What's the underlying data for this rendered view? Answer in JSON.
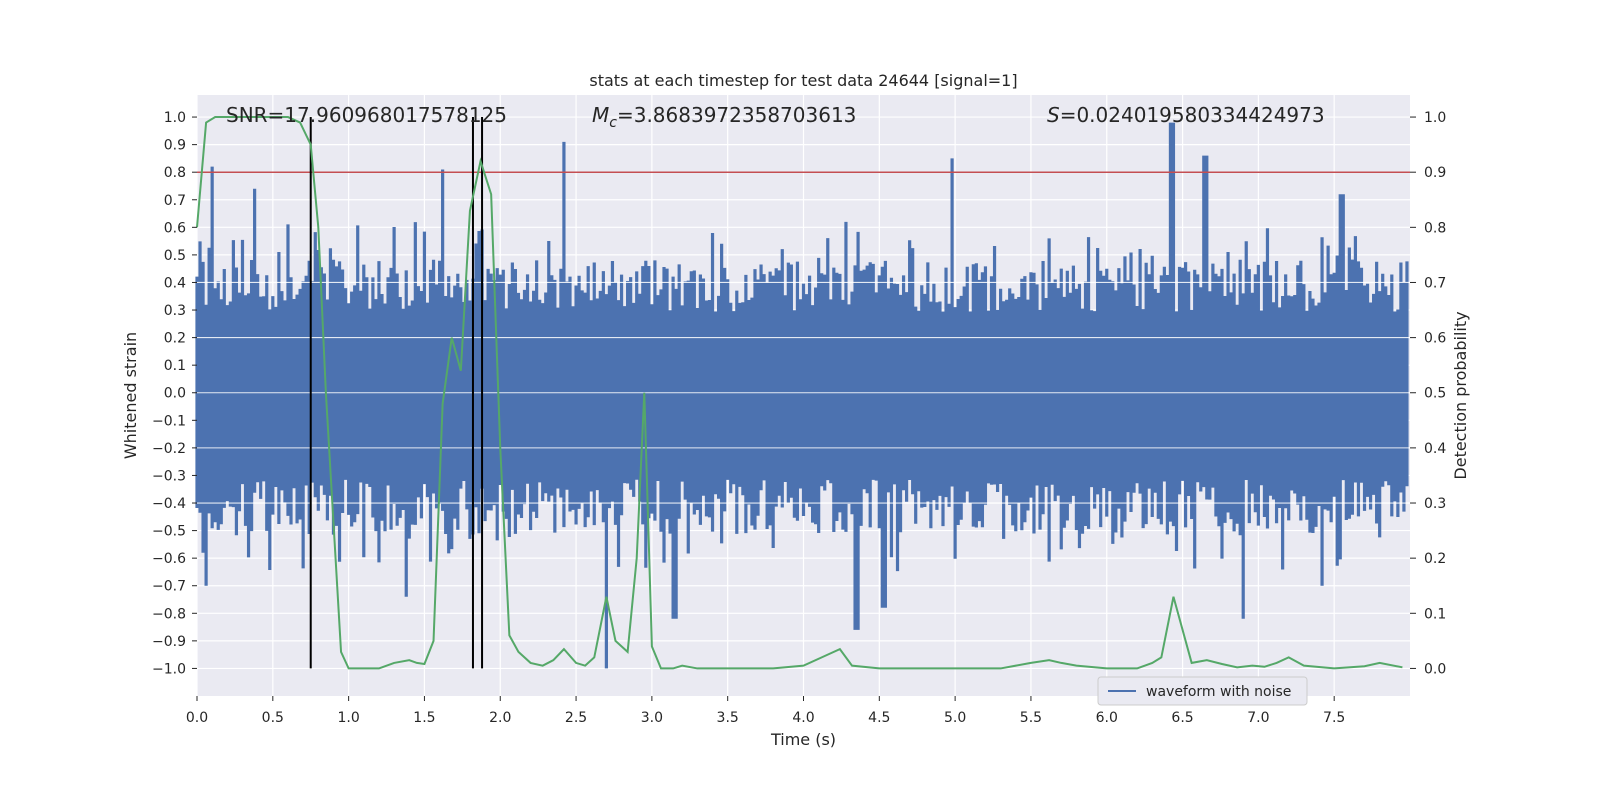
{
  "chart_data": {
    "type": "line",
    "title": "stats at each timestep for test data 24644 [signal=1]",
    "xlabel": "Time (s)",
    "ylabel": "Whitened strain",
    "y2label": "Detection probability",
    "xlim": [
      0.0,
      8.0
    ],
    "ylim": [
      -1.1,
      1.08
    ],
    "y2lim": [
      -0.05,
      1.04
    ],
    "xticks": [
      "0.0",
      "0.5",
      "1.0",
      "1.5",
      "2.0",
      "2.5",
      "3.0",
      "3.5",
      "4.0",
      "4.5",
      "5.0",
      "5.5",
      "6.0",
      "6.5",
      "7.0",
      "7.5"
    ],
    "yticks": [
      "1.0",
      "0.9",
      "0.8",
      "0.7",
      "0.6",
      "0.5",
      "0.4",
      "0.3",
      "0.2",
      "0.1",
      "0.0",
      "−0.1",
      "−0.2",
      "−0.3",
      "−0.4",
      "−0.5",
      "−0.6",
      "−0.7",
      "−0.8",
      "−0.9",
      "−1.0"
    ],
    "y2ticks": [
      "1.0",
      "0.9",
      "0.8",
      "0.7",
      "0.6",
      "0.5",
      "0.4",
      "0.3",
      "0.2",
      "0.1",
      "0.0"
    ],
    "annotations": {
      "snr": "SNR=17.960968017578125",
      "mc_symbol": "M",
      "mc_sub": "c",
      "mc_value": "=3.8683972358703613",
      "s_symbol": "S",
      "s_value": "=0.024019580334424973"
    },
    "threshold_y2": 0.9,
    "vertical_lines_x": [
      0.75,
      1.82,
      1.88
    ],
    "series": [
      {
        "name": "waveform with noise",
        "axis": "left",
        "color": "#4c72b0",
        "envelope": {
          "step": 0.02,
          "upper_base": 0.42,
          "lower_base": -0.45,
          "peaks": [
            [
              0.1,
              0.82
            ],
            [
              0.38,
              0.74
            ],
            [
              1.62,
              0.81
            ],
            [
              2.42,
              0.91
            ],
            [
              4.98,
              0.85
            ],
            [
              6.43,
              0.98
            ],
            [
              6.65,
              0.86
            ],
            [
              7.55,
              0.72
            ]
          ],
          "troughs": [
            [
              0.06,
              -0.7
            ],
            [
              1.38,
              -0.74
            ],
            [
              2.7,
              -1.0
            ],
            [
              3.15,
              -0.82
            ],
            [
              4.35,
              -0.86
            ],
            [
              4.53,
              -0.78
            ],
            [
              6.9,
              -0.82
            ],
            [
              7.42,
              -0.7
            ]
          ]
        }
      },
      {
        "name": "detection probability",
        "axis": "right",
        "color": "#55a868",
        "x": [
          0.0,
          0.06,
          0.12,
          0.2,
          0.3,
          0.4,
          0.5,
          0.6,
          0.68,
          0.75,
          0.8,
          0.85,
          0.95,
          1.0,
          1.1,
          1.2,
          1.3,
          1.4,
          1.45,
          1.5,
          1.56,
          1.62,
          1.68,
          1.74,
          1.8,
          1.87,
          1.94,
          2.0,
          2.06,
          2.12,
          2.2,
          2.28,
          2.35,
          2.42,
          2.5,
          2.56,
          2.62,
          2.7,
          2.76,
          2.84,
          2.9,
          2.95,
          3.0,
          3.06,
          3.14,
          3.2,
          3.3,
          3.5,
          3.8,
          4.0,
          4.12,
          4.24,
          4.32,
          4.5,
          4.9,
          5.3,
          5.5,
          5.62,
          5.7,
          5.8,
          6.0,
          6.2,
          6.3,
          6.36,
          6.44,
          6.56,
          6.66,
          6.76,
          6.86,
          6.96,
          7.04,
          7.12,
          7.2,
          7.3,
          7.5,
          7.7,
          7.8,
          7.95
        ],
        "values": [
          0.8,
          0.99,
          1.0,
          1.0,
          1.0,
          1.0,
          1.0,
          1.0,
          0.99,
          0.95,
          0.8,
          0.5,
          0.03,
          0.0,
          0.0,
          0.0,
          0.01,
          0.015,
          0.01,
          0.008,
          0.05,
          0.48,
          0.6,
          0.54,
          0.83,
          0.92,
          0.86,
          0.4,
          0.06,
          0.03,
          0.01,
          0.005,
          0.015,
          0.035,
          0.01,
          0.005,
          0.02,
          0.13,
          0.05,
          0.03,
          0.2,
          0.5,
          0.04,
          0.0,
          0.0,
          0.005,
          0.0,
          0.0,
          0.0,
          0.005,
          0.02,
          0.035,
          0.005,
          0.0,
          0.0,
          0.0,
          0.01,
          0.015,
          0.01,
          0.005,
          0.0,
          0.0,
          0.01,
          0.02,
          0.13,
          0.01,
          0.015,
          0.008,
          0.002,
          0.005,
          0.003,
          0.01,
          0.02,
          0.005,
          0.0,
          0.004,
          0.01,
          0.002
        ]
      }
    ],
    "legend": {
      "position": "lower-right",
      "entries": [
        "waveform with noise"
      ]
    },
    "colors": {
      "background": "#eaeaf2",
      "grid": "#ffffff",
      "threshold": "#c44e52",
      "vline": "#000000"
    },
    "grid": true
  }
}
